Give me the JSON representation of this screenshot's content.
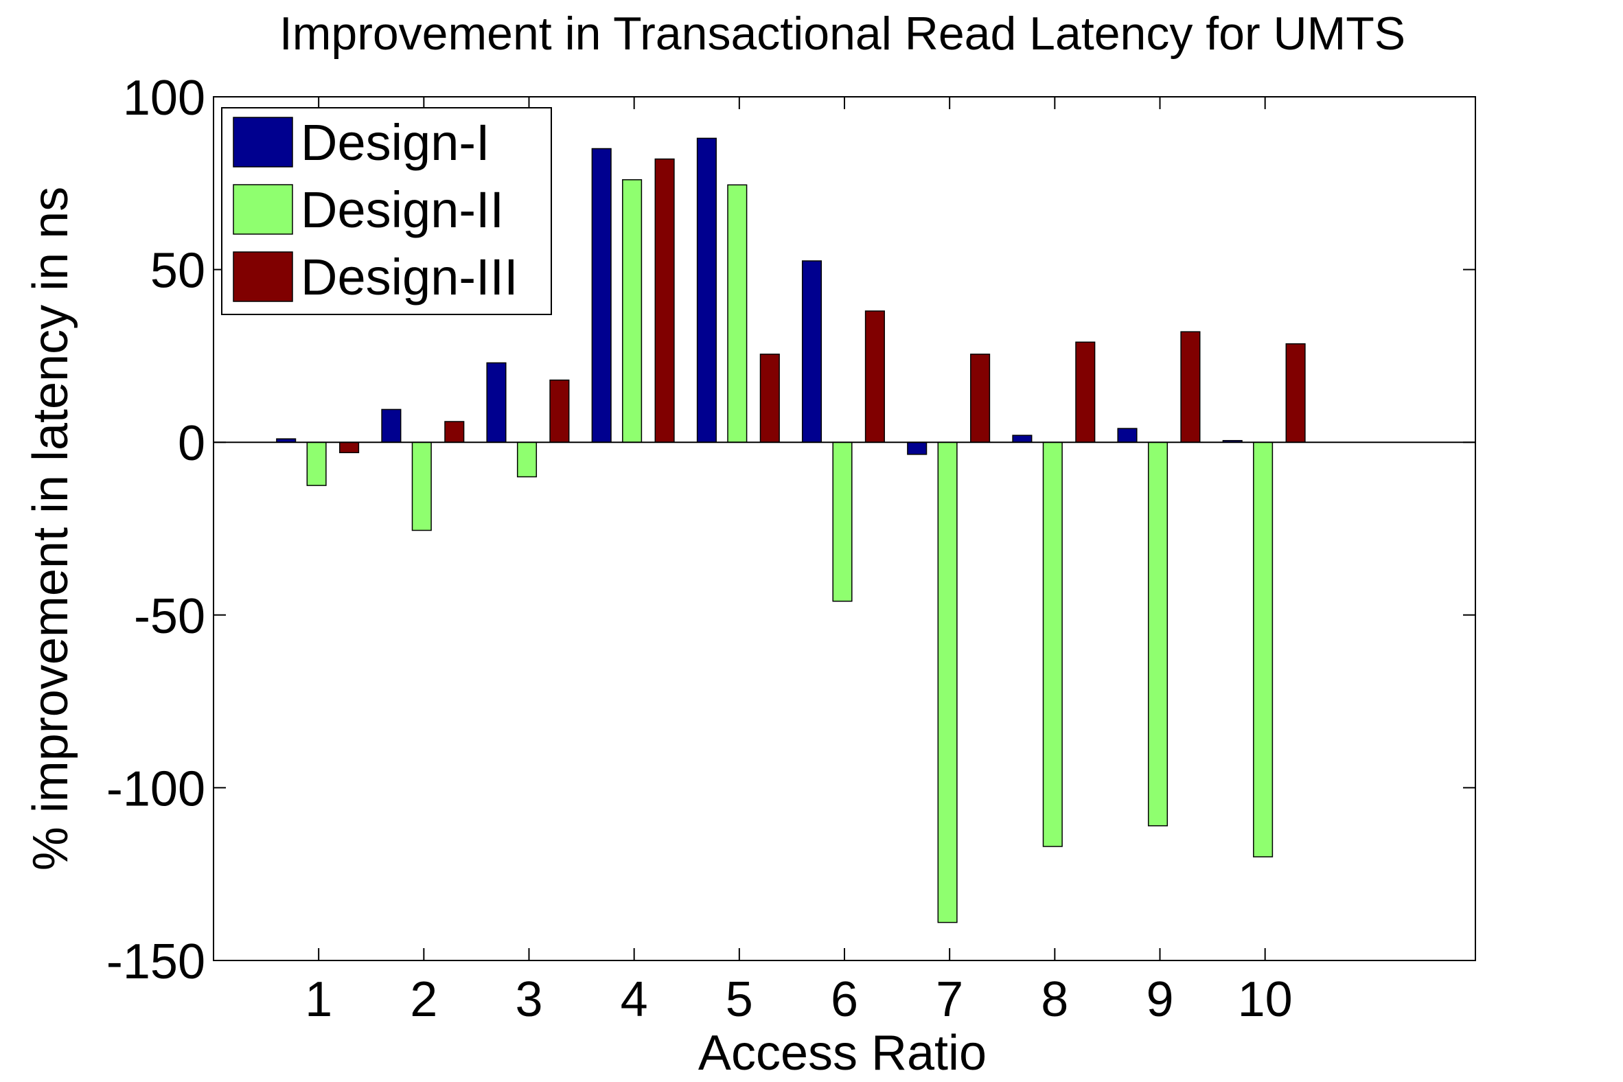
{
  "chart_data": {
    "type": "bar",
    "title": "Improvement in Transactional Read Latency for UMTS",
    "xlabel": "Access Ratio",
    "ylabel": "% improvement in latency in ns",
    "categories": [
      "1",
      "2",
      "3",
      "4",
      "5",
      "6",
      "7",
      "8",
      "9",
      "10"
    ],
    "xlim": [
      0,
      12
    ],
    "ylim": [
      -150,
      100
    ],
    "yticks": [
      -150,
      -100,
      -50,
      0,
      50,
      100
    ],
    "grid": false,
    "legend_position": "top-left",
    "series": [
      {
        "name": "Design-I",
        "color": "#00008f",
        "values": [
          1,
          9.5,
          23,
          85,
          88,
          52.5,
          -3.5,
          2,
          4,
          0.5
        ]
      },
      {
        "name": "Design-II",
        "color": "#8fff6f",
        "values": [
          -12.5,
          -25.5,
          -10,
          76,
          74.5,
          -46,
          -139,
          -117,
          -111,
          -120
        ]
      },
      {
        "name": "Design-III",
        "color": "#800000",
        "values": [
          -3,
          6,
          18,
          82,
          25.5,
          38,
          25.5,
          29,
          32,
          28.5
        ]
      }
    ]
  }
}
